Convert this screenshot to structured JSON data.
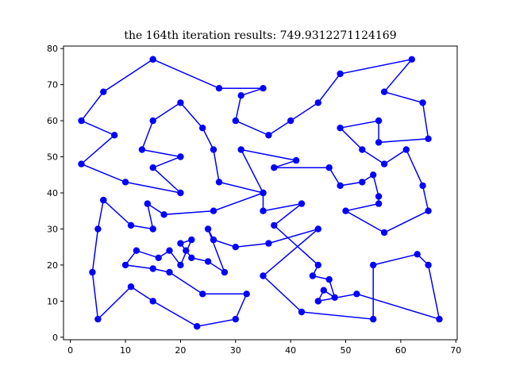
{
  "chart_data": {
    "type": "line",
    "title": "the 164th iteration results: 749.9312271124169",
    "xlabel": "",
    "ylabel": "",
    "xlim": [
      -1.25,
      70.25
    ],
    "ylim": [
      -0.7,
      80.7
    ],
    "xticks": [
      0,
      10,
      20,
      30,
      40,
      50,
      60,
      70
    ],
    "yticks": [
      0,
      10,
      20,
      30,
      40,
      50,
      60,
      70,
      80
    ],
    "grid": false,
    "color": "#0000ff",
    "route": [
      [
        15,
        77
      ],
      [
        27,
        69
      ],
      [
        35,
        69
      ],
      [
        31,
        67
      ],
      [
        30,
        60
      ],
      [
        36,
        56
      ],
      [
        40,
        60
      ],
      [
        45,
        65
      ],
      [
        49,
        73
      ],
      [
        62,
        77
      ],
      [
        57,
        68
      ],
      [
        64,
        65
      ],
      [
        65,
        55
      ],
      [
        56,
        54
      ],
      [
        56,
        60
      ],
      [
        49,
        58
      ],
      [
        53,
        52
      ],
      [
        57,
        48
      ],
      [
        61,
        52
      ],
      [
        64,
        42
      ],
      [
        65,
        35
      ],
      [
        57,
        29
      ],
      [
        50,
        35
      ],
      [
        56,
        37
      ],
      [
        56,
        39
      ],
      [
        55,
        45
      ],
      [
        53,
        43
      ],
      [
        49,
        42
      ],
      [
        47,
        47
      ],
      [
        37,
        47
      ],
      [
        41,
        49
      ],
      [
        31,
        52
      ],
      [
        35,
        40
      ],
      [
        27,
        43
      ],
      [
        26,
        52
      ],
      [
        24,
        58
      ],
      [
        20,
        65
      ],
      [
        15,
        60
      ],
      [
        13,
        52
      ],
      [
        20,
        50
      ],
      [
        15,
        47
      ],
      [
        20,
        40
      ],
      [
        10,
        43
      ],
      [
        2,
        48
      ],
      [
        8,
        56
      ],
      [
        2,
        60
      ],
      [
        6,
        68
      ],
      [
        15,
        77
      ]
    ],
    "route2": [
      [
        6,
        38
      ],
      [
        11,
        31
      ],
      [
        15,
        30
      ],
      [
        14,
        37
      ],
      [
        17,
        34
      ],
      [
        26,
        35
      ],
      [
        35,
        40
      ],
      [
        35,
        35
      ],
      [
        42,
        37
      ],
      [
        37,
        31
      ],
      [
        45,
        20
      ],
      [
        44,
        17
      ],
      [
        47,
        16
      ],
      [
        48,
        11
      ],
      [
        46,
        13
      ],
      [
        45,
        10
      ],
      [
        52,
        12
      ],
      [
        67,
        5
      ],
      [
        65,
        20
      ],
      [
        63,
        23
      ],
      [
        55,
        20
      ],
      [
        55,
        5
      ],
      [
        42,
        7
      ],
      [
        35,
        17
      ],
      [
        45,
        30
      ],
      [
        36,
        26
      ],
      [
        30,
        25
      ],
      [
        26,
        27
      ],
      [
        25,
        30
      ],
      [
        28,
        18
      ],
      [
        25,
        21
      ],
      [
        22,
        22
      ],
      [
        21,
        24
      ],
      [
        20,
        26
      ],
      [
        22,
        27
      ],
      [
        20,
        20
      ],
      [
        18,
        24
      ],
      [
        16,
        22
      ],
      [
        12,
        24
      ],
      [
        10,
        20
      ],
      [
        15,
        19
      ],
      [
        18,
        18
      ],
      [
        24,
        12
      ],
      [
        32,
        12
      ],
      [
        30,
        5
      ],
      [
        23,
        3
      ],
      [
        15,
        10
      ],
      [
        11,
        14
      ],
      [
        5,
        5
      ],
      [
        4,
        18
      ],
      [
        5,
        30
      ],
      [
        6,
        38
      ]
    ]
  }
}
